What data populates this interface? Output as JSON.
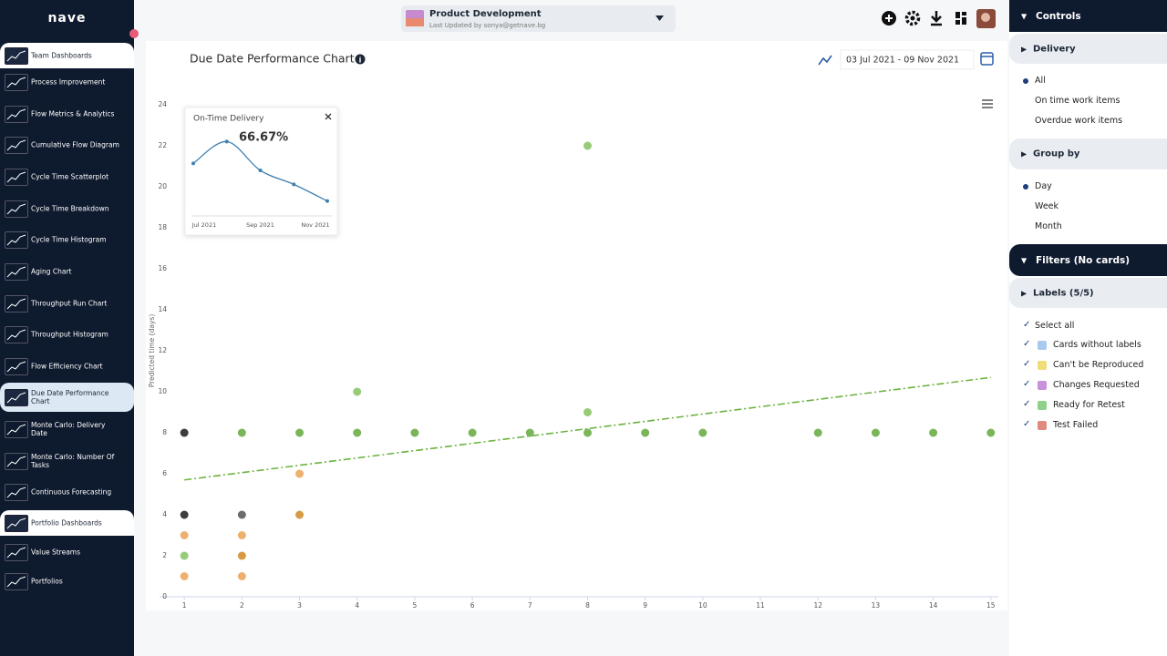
{
  "sidebar": {
    "logo": "nave",
    "items": [
      "Team Dashboards",
      "Process Improvement",
      "Flow Metrics & Analytics",
      "Cumulative Flow Diagram",
      "Cycle Time Scatterplot",
      "Cycle Time Breakdown",
      "Cycle Time Histogram",
      "Aging Chart",
      "Throughput Run Chart",
      "Throughput Histogram",
      "Flow Efficiency Chart",
      "Due Date Performance Chart",
      "Monte Carlo: Delivery Date",
      "Monte Carlo: Number Of Tasks",
      "Continuous Forecasting",
      "Portfolio Dashboards",
      "Value Streams",
      "Portfolios"
    ]
  },
  "header": {
    "board": "Product Development",
    "updated": "Last Updated by sonya@getnave.bg"
  },
  "controls": {
    "title": "Controls",
    "delivery": {
      "title": "Delivery",
      "options": [
        "All",
        "On time work items",
        "Overdue work items"
      ],
      "selected": 0
    },
    "group_by": {
      "title": "Group by",
      "options": [
        "Day",
        "Week",
        "Month"
      ],
      "selected": 0
    },
    "filters": {
      "title": "Filters (No cards)",
      "labels": {
        "title": "Labels (5/5)",
        "select_all": "Select all",
        "items": [
          {
            "name": "Cards without labels",
            "color": "#a9c9ee"
          },
          {
            "name": "Can't be Reproduced",
            "color": "#f1dc7a"
          },
          {
            "name": "Changes Requested",
            "color": "#c990db"
          },
          {
            "name": "Ready for Retest",
            "color": "#8fd08a"
          },
          {
            "name": "Test Failed",
            "color": "#e08a7e"
          }
        ]
      }
    }
  },
  "chart_data": [
    {
      "type": "scatter",
      "title": "Due Date Performance Chart",
      "date_range": "03 Jul 2021 - 09 Nov 2021",
      "ylabel": "Predicted time (days)",
      "xlim": [
        0.57,
        15.13
      ],
      "ylim": [
        0,
        24
      ],
      "xticks": [
        1,
        2,
        3,
        4,
        5,
        6,
        7,
        8,
        9,
        10,
        11,
        12,
        13,
        14,
        15
      ],
      "yticks": [
        0,
        2,
        4,
        6,
        8,
        10,
        12,
        14,
        16,
        18,
        20,
        22,
        24
      ],
      "series": [
        {
          "color": "#7ab55a",
          "x": [
            2,
            3,
            4,
            5,
            6,
            7,
            8,
            9,
            10,
            12,
            13,
            14,
            15
          ],
          "values": [
            8,
            8,
            8,
            8,
            8,
            8,
            8,
            8,
            8,
            8,
            8,
            8,
            8
          ]
        },
        {
          "color": "#97cb78",
          "x": [
            1,
            4,
            8,
            8
          ],
          "values": [
            2,
            10,
            22,
            9
          ]
        },
        {
          "color": "#3d3d3d",
          "x": [
            1,
            1
          ],
          "values": [
            8,
            4
          ]
        },
        {
          "color": "#6b6b6b",
          "x": [
            2
          ],
          "values": [
            4
          ]
        },
        {
          "color": "#eeb070",
          "x": [
            1,
            1,
            2,
            2,
            3
          ],
          "values": [
            3,
            1,
            3,
            1,
            6
          ]
        },
        {
          "color": "#d89a45",
          "x": [
            2,
            3
          ],
          "values": [
            2,
            4
          ]
        }
      ],
      "trendline": {
        "color": "#6cb33f",
        "x": [
          1,
          15
        ],
        "values": [
          5.7,
          10.7
        ]
      }
    },
    {
      "type": "line",
      "title": "On-Time Delivery",
      "subtitle": "66.67%",
      "color": "#3d7fb0",
      "categories": [
        "Jul 2021",
        null,
        "Sep 2021",
        null,
        "Nov 2021"
      ],
      "values": [
        59,
        84,
        51,
        35,
        16
      ],
      "ylim": [
        0,
        100
      ]
    }
  ]
}
